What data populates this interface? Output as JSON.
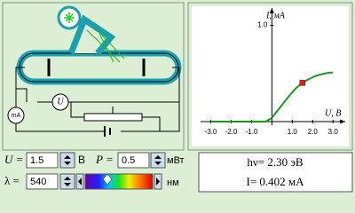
{
  "circuit": {
    "voltmeter": "U",
    "ammeter": "mA"
  },
  "graph": {
    "y_label": "I, мА",
    "x_label": "U, В",
    "xlim": [
      -3.5,
      3.6
    ],
    "ylim": [
      0,
      1.18
    ],
    "xticks": [
      {
        "value": -3,
        "label": "-3.0"
      },
      {
        "value": -2,
        "label": "-2.0"
      },
      {
        "value": -1,
        "label": "-1.0"
      },
      {
        "value": 1,
        "label": "1.0"
      },
      {
        "value": 2,
        "label": "2.0"
      },
      {
        "value": 3,
        "label": "3.0"
      }
    ],
    "yticks": [
      {
        "value": 1,
        "label": "1.0"
      }
    ],
    "curve": {
      "color": "#1a9a1a",
      "x": [
        -3,
        -2,
        -1,
        -0.3,
        0,
        0.3,
        0.6,
        0.9,
        1.2,
        1.5,
        1.8,
        2.1,
        2.4,
        2.7,
        3
      ],
      "y": [
        0,
        0,
        0,
        0,
        0.04,
        0.12,
        0.2,
        0.28,
        0.35,
        0.402,
        0.44,
        0.47,
        0.49,
        0.505,
        0.51
      ]
    },
    "point": {
      "x": 1.5,
      "y": 0.402,
      "color": "#e02020"
    }
  },
  "controls": {
    "voltage": {
      "label": "U =",
      "value": "1.5",
      "unit": "В"
    },
    "power": {
      "label": "P =",
      "value": "0.5",
      "unit": "мВт"
    },
    "wavelength": {
      "label": "λ =",
      "value": "540",
      "unit": "нм"
    }
  },
  "results": {
    "photon_energy": "hν= 2.30 эВ",
    "current": "I= 0.402 мА"
  }
}
